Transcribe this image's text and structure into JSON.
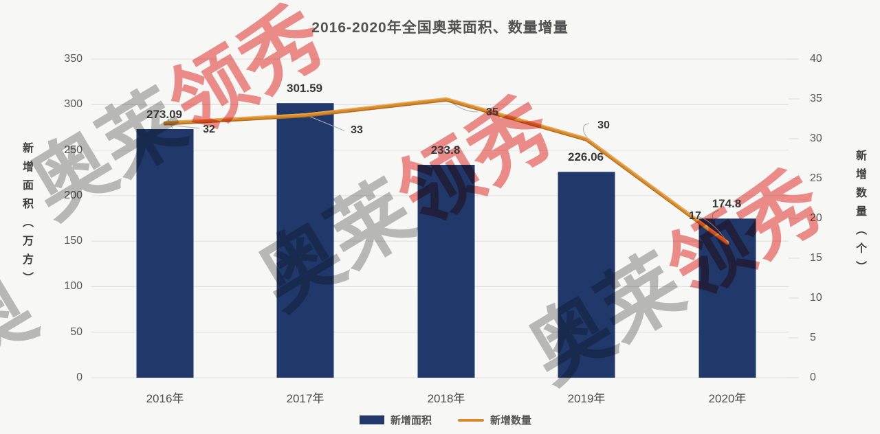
{
  "title": "2016-2020年全国奥莱面积、数量增量",
  "chart_data": {
    "type": "bar+line combo",
    "title": "2016-2020年全国奥莱面积、数量增量",
    "categories": [
      "2016年",
      "2017年",
      "2018年",
      "2019年",
      "2020年"
    ],
    "series": [
      {
        "name": "新增面积",
        "type": "bar",
        "axis": "left",
        "values": [
          273.09,
          301.59,
          233.8,
          226.06,
          174.8
        ]
      },
      {
        "name": "新增数量",
        "type": "line",
        "axis": "right",
        "values": [
          32,
          33,
          35,
          30,
          17
        ]
      }
    ],
    "left_axis": {
      "title": "新增面积（万方）",
      "min": 0,
      "max": 350,
      "ticks": [
        350,
        300,
        250,
        200,
        150,
        100,
        50,
        0
      ]
    },
    "right_axis": {
      "title": "新增数量（个）",
      "min": 0,
      "max": 40,
      "ticks": [
        40,
        35,
        30,
        25,
        20,
        15,
        10,
        5,
        0
      ]
    },
    "grid": true,
    "legend_position": "bottom",
    "data_labels_shown": true
  },
  "legend": [
    {
      "label": "新增面积",
      "marker": "bar-swatch"
    },
    {
      "label": "新增数量",
      "marker": "line-swatch"
    }
  ],
  "watermark": {
    "text": "奥莱领秀"
  },
  "colors": {
    "bar": "#21386b",
    "line": "#d8892c",
    "line_shadow": "#b06f1f",
    "line_highlight": "#eaaa52",
    "grid": "#e2e2e0",
    "leader": "#a9adb4",
    "background": "#f7f7f5",
    "watermark_gray": "#bdbdbd",
    "watermark_red": "#f2908e"
  }
}
